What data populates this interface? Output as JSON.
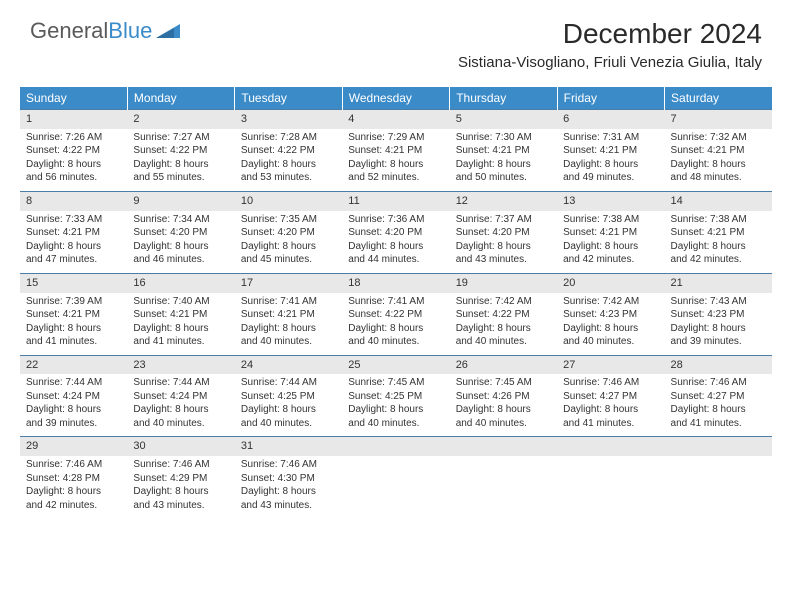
{
  "brand": {
    "part1": "General",
    "part2": "Blue"
  },
  "title": "December 2024",
  "location": "Sistiana-Visogliano, Friuli Venezia Giulia, Italy",
  "colors": {
    "header_bg": "#3b8bc9",
    "header_fg": "#ffffff",
    "daynum_bg": "#e8e8e8",
    "row_border": "#4a7da8",
    "text": "#333333"
  },
  "day_headers": [
    "Sunday",
    "Monday",
    "Tuesday",
    "Wednesday",
    "Thursday",
    "Friday",
    "Saturday"
  ],
  "weeks": [
    [
      {
        "n": "1",
        "sunrise": "Sunrise: 7:26 AM",
        "sunset": "Sunset: 4:22 PM",
        "day1": "Daylight: 8 hours",
        "day2": "and 56 minutes."
      },
      {
        "n": "2",
        "sunrise": "Sunrise: 7:27 AM",
        "sunset": "Sunset: 4:22 PM",
        "day1": "Daylight: 8 hours",
        "day2": "and 55 minutes."
      },
      {
        "n": "3",
        "sunrise": "Sunrise: 7:28 AM",
        "sunset": "Sunset: 4:22 PM",
        "day1": "Daylight: 8 hours",
        "day2": "and 53 minutes."
      },
      {
        "n": "4",
        "sunrise": "Sunrise: 7:29 AM",
        "sunset": "Sunset: 4:21 PM",
        "day1": "Daylight: 8 hours",
        "day2": "and 52 minutes."
      },
      {
        "n": "5",
        "sunrise": "Sunrise: 7:30 AM",
        "sunset": "Sunset: 4:21 PM",
        "day1": "Daylight: 8 hours",
        "day2": "and 50 minutes."
      },
      {
        "n": "6",
        "sunrise": "Sunrise: 7:31 AM",
        "sunset": "Sunset: 4:21 PM",
        "day1": "Daylight: 8 hours",
        "day2": "and 49 minutes."
      },
      {
        "n": "7",
        "sunrise": "Sunrise: 7:32 AM",
        "sunset": "Sunset: 4:21 PM",
        "day1": "Daylight: 8 hours",
        "day2": "and 48 minutes."
      }
    ],
    [
      {
        "n": "8",
        "sunrise": "Sunrise: 7:33 AM",
        "sunset": "Sunset: 4:21 PM",
        "day1": "Daylight: 8 hours",
        "day2": "and 47 minutes."
      },
      {
        "n": "9",
        "sunrise": "Sunrise: 7:34 AM",
        "sunset": "Sunset: 4:20 PM",
        "day1": "Daylight: 8 hours",
        "day2": "and 46 minutes."
      },
      {
        "n": "10",
        "sunrise": "Sunrise: 7:35 AM",
        "sunset": "Sunset: 4:20 PM",
        "day1": "Daylight: 8 hours",
        "day2": "and 45 minutes."
      },
      {
        "n": "11",
        "sunrise": "Sunrise: 7:36 AM",
        "sunset": "Sunset: 4:20 PM",
        "day1": "Daylight: 8 hours",
        "day2": "and 44 minutes."
      },
      {
        "n": "12",
        "sunrise": "Sunrise: 7:37 AM",
        "sunset": "Sunset: 4:20 PM",
        "day1": "Daylight: 8 hours",
        "day2": "and 43 minutes."
      },
      {
        "n": "13",
        "sunrise": "Sunrise: 7:38 AM",
        "sunset": "Sunset: 4:21 PM",
        "day1": "Daylight: 8 hours",
        "day2": "and 42 minutes."
      },
      {
        "n": "14",
        "sunrise": "Sunrise: 7:38 AM",
        "sunset": "Sunset: 4:21 PM",
        "day1": "Daylight: 8 hours",
        "day2": "and 42 minutes."
      }
    ],
    [
      {
        "n": "15",
        "sunrise": "Sunrise: 7:39 AM",
        "sunset": "Sunset: 4:21 PM",
        "day1": "Daylight: 8 hours",
        "day2": "and 41 minutes."
      },
      {
        "n": "16",
        "sunrise": "Sunrise: 7:40 AM",
        "sunset": "Sunset: 4:21 PM",
        "day1": "Daylight: 8 hours",
        "day2": "and 41 minutes."
      },
      {
        "n": "17",
        "sunrise": "Sunrise: 7:41 AM",
        "sunset": "Sunset: 4:21 PM",
        "day1": "Daylight: 8 hours",
        "day2": "and 40 minutes."
      },
      {
        "n": "18",
        "sunrise": "Sunrise: 7:41 AM",
        "sunset": "Sunset: 4:22 PM",
        "day1": "Daylight: 8 hours",
        "day2": "and 40 minutes."
      },
      {
        "n": "19",
        "sunrise": "Sunrise: 7:42 AM",
        "sunset": "Sunset: 4:22 PM",
        "day1": "Daylight: 8 hours",
        "day2": "and 40 minutes."
      },
      {
        "n": "20",
        "sunrise": "Sunrise: 7:42 AM",
        "sunset": "Sunset: 4:23 PM",
        "day1": "Daylight: 8 hours",
        "day2": "and 40 minutes."
      },
      {
        "n": "21",
        "sunrise": "Sunrise: 7:43 AM",
        "sunset": "Sunset: 4:23 PM",
        "day1": "Daylight: 8 hours",
        "day2": "and 39 minutes."
      }
    ],
    [
      {
        "n": "22",
        "sunrise": "Sunrise: 7:44 AM",
        "sunset": "Sunset: 4:24 PM",
        "day1": "Daylight: 8 hours",
        "day2": "and 39 minutes."
      },
      {
        "n": "23",
        "sunrise": "Sunrise: 7:44 AM",
        "sunset": "Sunset: 4:24 PM",
        "day1": "Daylight: 8 hours",
        "day2": "and 40 minutes."
      },
      {
        "n": "24",
        "sunrise": "Sunrise: 7:44 AM",
        "sunset": "Sunset: 4:25 PM",
        "day1": "Daylight: 8 hours",
        "day2": "and 40 minutes."
      },
      {
        "n": "25",
        "sunrise": "Sunrise: 7:45 AM",
        "sunset": "Sunset: 4:25 PM",
        "day1": "Daylight: 8 hours",
        "day2": "and 40 minutes."
      },
      {
        "n": "26",
        "sunrise": "Sunrise: 7:45 AM",
        "sunset": "Sunset: 4:26 PM",
        "day1": "Daylight: 8 hours",
        "day2": "and 40 minutes."
      },
      {
        "n": "27",
        "sunrise": "Sunrise: 7:46 AM",
        "sunset": "Sunset: 4:27 PM",
        "day1": "Daylight: 8 hours",
        "day2": "and 41 minutes."
      },
      {
        "n": "28",
        "sunrise": "Sunrise: 7:46 AM",
        "sunset": "Sunset: 4:27 PM",
        "day1": "Daylight: 8 hours",
        "day2": "and 41 minutes."
      }
    ],
    [
      {
        "n": "29",
        "sunrise": "Sunrise: 7:46 AM",
        "sunset": "Sunset: 4:28 PM",
        "day1": "Daylight: 8 hours",
        "day2": "and 42 minutes."
      },
      {
        "n": "30",
        "sunrise": "Sunrise: 7:46 AM",
        "sunset": "Sunset: 4:29 PM",
        "day1": "Daylight: 8 hours",
        "day2": "and 43 minutes."
      },
      {
        "n": "31",
        "sunrise": "Sunrise: 7:46 AM",
        "sunset": "Sunset: 4:30 PM",
        "day1": "Daylight: 8 hours",
        "day2": "and 43 minutes."
      },
      null,
      null,
      null,
      null
    ]
  ]
}
